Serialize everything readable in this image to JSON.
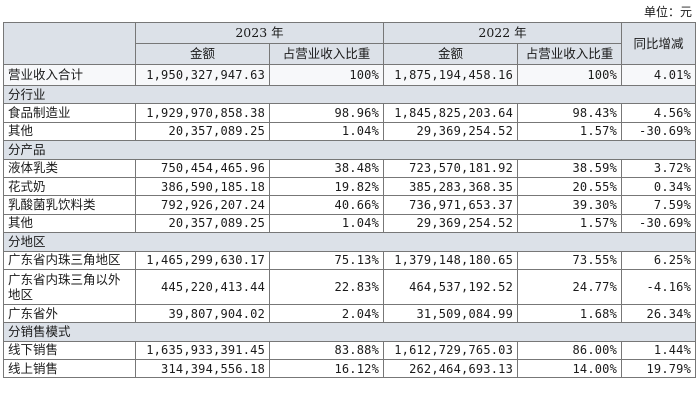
{
  "unit_label": "单位：元",
  "header": {
    "year_2023": "2023 年",
    "year_2022": "2022 年",
    "yoy": "同比增减",
    "amount": "金额",
    "ratio": "占营业收入比重"
  },
  "total": {
    "label": "营业收入合计",
    "a2023": "1,950,327,947.63",
    "r2023": "100%",
    "a2022": "1,875,194,458.16",
    "r2022": "100%",
    "yoy": "4.01%"
  },
  "sections": [
    {
      "title": "分行业",
      "rows": [
        {
          "label": "食品制造业",
          "a2023": "1,929,970,858.38",
          "r2023": "98.96%",
          "a2022": "1,845,825,203.64",
          "r2022": "98.43%",
          "yoy": "4.56%"
        },
        {
          "label": "其他",
          "a2023": "20,357,089.25",
          "r2023": "1.04%",
          "a2022": "29,369,254.52",
          "r2022": "1.57%",
          "yoy": "-30.69%"
        }
      ]
    },
    {
      "title": "分产品",
      "rows": [
        {
          "label": "液体乳类",
          "a2023": "750,454,465.96",
          "r2023": "38.48%",
          "a2022": "723,570,181.92",
          "r2022": "38.59%",
          "yoy": "3.72%"
        },
        {
          "label": "花式奶",
          "a2023": "386,590,185.18",
          "r2023": "19.82%",
          "a2022": "385,283,368.35",
          "r2022": "20.55%",
          "yoy": "0.34%"
        },
        {
          "label": "乳酸菌乳饮料类",
          "a2023": "792,926,207.24",
          "r2023": "40.66%",
          "a2022": "736,971,653.37",
          "r2022": "39.30%",
          "yoy": "7.59%"
        },
        {
          "label": "其他",
          "a2023": "20,357,089.25",
          "r2023": "1.04%",
          "a2022": "29,369,254.52",
          "r2022": "1.57%",
          "yoy": "-30.69%"
        }
      ]
    },
    {
      "title": "分地区",
      "rows": [
        {
          "label": "广东省内珠三角地区",
          "a2023": "1,465,299,630.17",
          "r2023": "75.13%",
          "a2022": "1,379,148,180.65",
          "r2022": "73.55%",
          "yoy": "6.25%"
        },
        {
          "label": "广东省内珠三角以外地区",
          "a2023": "445,220,413.44",
          "r2023": "22.83%",
          "a2022": "464,537,192.52",
          "r2022": "24.77%",
          "yoy": "-4.16%"
        },
        {
          "label": "广东省外",
          "a2023": "39,807,904.02",
          "r2023": "2.04%",
          "a2022": "31,509,084.99",
          "r2022": "1.68%",
          "yoy": "26.34%"
        }
      ]
    },
    {
      "title": "分销售模式",
      "rows": [
        {
          "label": "线下销售",
          "a2023": "1,635,933,391.45",
          "r2023": "83.88%",
          "a2022": "1,612,729,765.03",
          "r2022": "86.00%",
          "yoy": "1.44%"
        },
        {
          "label": "线上销售",
          "a2023": "314,394,556.18",
          "r2023": "16.12%",
          "a2022": "262,464,693.13",
          "r2022": "14.00%",
          "yoy": "19.79%"
        }
      ]
    }
  ]
}
